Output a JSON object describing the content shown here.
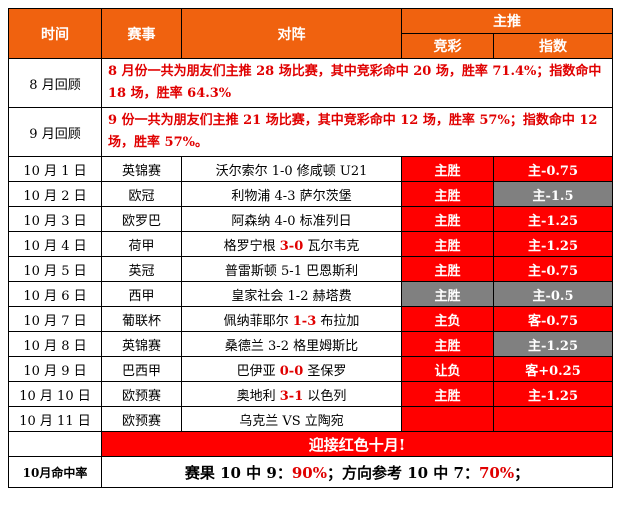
{
  "header": {
    "time": "时间",
    "league": "赛事",
    "match": "对阵",
    "main_pick": "主推",
    "jingcai": "竞彩",
    "index": "指数"
  },
  "reviews": [
    {
      "label": "8 月回顾",
      "text": "8 月份一共为朋友们主推 28 场比赛，其中竞彩命中 20 场，胜率 71.4%；指数命中 18 场，胜率 64.3%"
    },
    {
      "label": "9 月回顾",
      "text": "9 份一共为朋友们主推 21 场比赛，其中竞彩命中 12 场，胜率 57%；指数命中 12 场，胜率 57%。"
    }
  ],
  "rows": [
    {
      "date": "10 月 1 日",
      "league": "英锦赛",
      "home": "沃尔索尔",
      "score": "1-0",
      "away": "修咸顿 U21",
      "score_red": false,
      "pick": "主胜",
      "pick_color": "#ff0000",
      "handicap": "主-0.75",
      "handicap_color": "#ff0000"
    },
    {
      "date": "10 月 2 日",
      "league": "欧冠",
      "home": "利物浦",
      "score": "4-3",
      "away": "萨尔茨堡",
      "score_red": false,
      "pick": "主胜",
      "pick_color": "#ff0000",
      "handicap": "主-1.5",
      "handicap_color": "#808080"
    },
    {
      "date": "10 月 3 日",
      "league": "欧罗巴",
      "home": "阿森纳",
      "score": "4-0",
      "away": "标准列日",
      "score_red": false,
      "pick": "主胜",
      "pick_color": "#ff0000",
      "handicap": "主-1.25",
      "handicap_color": "#ff0000"
    },
    {
      "date": "10 月 4 日",
      "league": "荷甲",
      "home": "格罗宁根",
      "score": "3-0",
      "away": "瓦尔韦克",
      "score_red": true,
      "pick": "主胜",
      "pick_color": "#ff0000",
      "handicap": "主-1.25",
      "handicap_color": "#ff0000"
    },
    {
      "date": "10 月 5 日",
      "league": "英冠",
      "home": "普雷斯顿",
      "score": "5-1",
      "away": "巴恩斯利",
      "score_red": false,
      "pick": "主胜",
      "pick_color": "#ff0000",
      "handicap": "主-0.75",
      "handicap_color": "#ff0000"
    },
    {
      "date": "10 月 6 日",
      "league": "西甲",
      "home": "皇家社会",
      "score": "1-2",
      "away": "赫塔费",
      "score_red": false,
      "pick": "主胜",
      "pick_color": "#808080",
      "handicap": "主-0.5",
      "handicap_color": "#808080"
    },
    {
      "date": "10 月 7 日",
      "league": "葡联杯",
      "home": "佩纳菲耶尔",
      "score": "1-3",
      "away": "布拉加",
      "score_red": true,
      "pick": "主负",
      "pick_color": "#ff0000",
      "handicap": "客-0.75",
      "handicap_color": "#ff0000"
    },
    {
      "date": "10 月 8 日",
      "league": "英锦赛",
      "home": "桑德兰",
      "score": "3-2",
      "away": "格里姆斯比",
      "score_red": false,
      "pick": "主胜",
      "pick_color": "#ff0000",
      "handicap": "主-1.25",
      "handicap_color": "#808080"
    },
    {
      "date": "10 月 9 日",
      "league": "巴西甲",
      "home": "巴伊亚",
      "score": "0-0",
      "away": "圣保罗",
      "score_red": true,
      "pick": "让负",
      "pick_color": "#ff0000",
      "handicap": "客+0.25",
      "handicap_color": "#ff0000"
    },
    {
      "date": "10 月 10 日",
      "league": "欧预赛",
      "home": "奥地利",
      "score": "3-1",
      "away": "以色列",
      "score_red": true,
      "pick": "主胜",
      "pick_color": "#ff0000",
      "handicap": "主-1.25",
      "handicap_color": "#ff0000"
    },
    {
      "date": "10 月 11 日",
      "league": "欧预赛",
      "home": "乌克兰",
      "score": "VS",
      "away": "立陶宛",
      "score_red": false,
      "pick": "",
      "pick_color": "#ff0000",
      "handicap": "",
      "handicap_color": "#ff0000"
    }
  ],
  "banner": "迎接红色十月!",
  "rate": {
    "label": "10月命中率",
    "p1": "赛果 10 中 9：",
    "v1": "90%",
    "p2": "；方向参考 10 中 7：",
    "v2": "70%",
    "p3": "；"
  }
}
